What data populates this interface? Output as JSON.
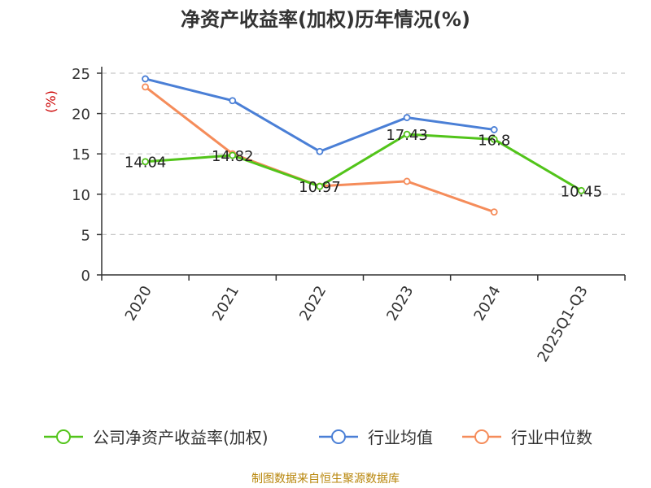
{
  "chart_data": {
    "type": "line",
    "title": "净资产收益率(加权)历年情况(%)",
    "unit_label": "(%)",
    "categories": [
      "2020",
      "2021",
      "2022",
      "2023",
      "2024",
      "2025Q1-Q3"
    ],
    "ylim": [
      0,
      25
    ],
    "yticks": [
      0,
      5,
      10,
      15,
      20,
      25
    ],
    "grid": true,
    "legend_position": "bottom",
    "series": [
      {
        "name": "公司净资产收益率(加权)",
        "color": "#52c41a",
        "values": [
          14.04,
          14.82,
          10.97,
          17.43,
          16.8,
          10.45
        ],
        "labels": [
          "14.04",
          "14.82",
          "10.97",
          "17.43",
          "16.8",
          "10.45"
        ]
      },
      {
        "name": "行业均值",
        "color": "#4a7fd6",
        "values": [
          24.3,
          21.6,
          15.3,
          19.5,
          18.0,
          null
        ]
      },
      {
        "name": "行业中位数",
        "color": "#f58c5a",
        "values": [
          23.3,
          15.0,
          11.0,
          11.6,
          7.8,
          null
        ]
      }
    ]
  },
  "source_note": "制图数据来自恒生聚源数据库"
}
